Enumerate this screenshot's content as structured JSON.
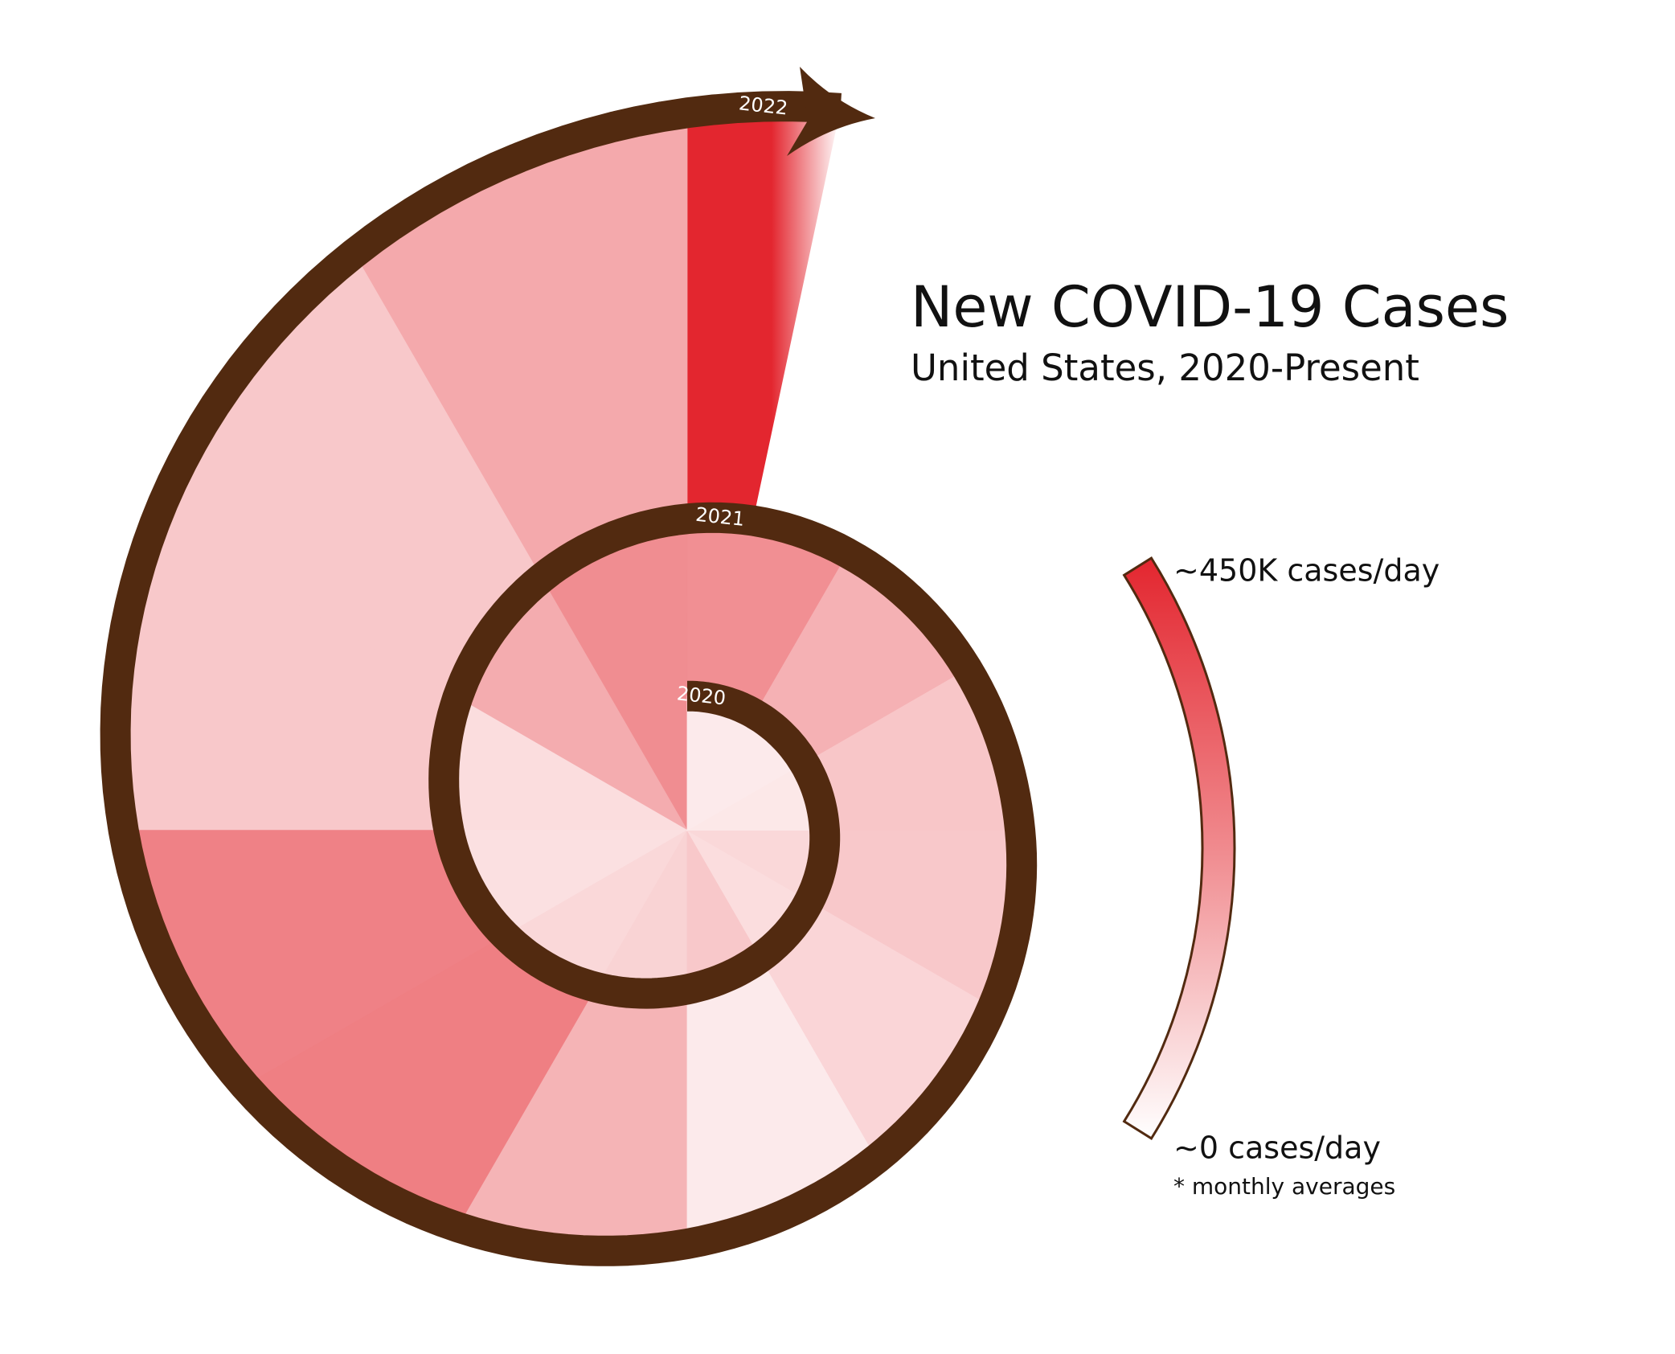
{
  "chart_data": {
    "type": "spiral",
    "title": "New COVID-19 Cases",
    "subtitle": "United States, 2020-Present",
    "spiral_color": "#522a10",
    "series": [
      {
        "name": "2020",
        "values": [
          40000,
          40000,
          45000,
          75000,
          65000,
          105000,
          85000,
          75000,
          60000,
          65000,
          160000,
          220000
        ]
      },
      {
        "name": "2021",
        "values": [
          215000,
          150000,
          110000,
          105000,
          80000,
          40000,
          145000,
          250000,
          245000,
          105000,
          105000,
          165000
        ]
      },
      {
        "name": "2022",
        "values": [
          450000
        ]
      }
    ],
    "colorscale": {
      "range": [
        0,
        450000
      ],
      "colors": [
        "#ffffff",
        "#f08a8e",
        "#e3262f"
      ]
    },
    "legend": {
      "max_label": "~450K cases/day",
      "min_label": "~0 cases/day",
      "note": "* monthly averages"
    }
  }
}
